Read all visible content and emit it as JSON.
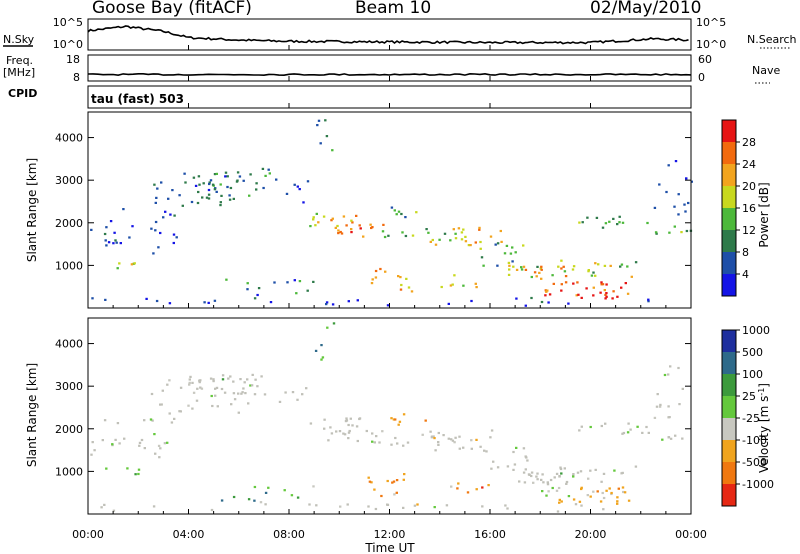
{
  "header": {
    "station": "Goose Bay (fitACF)",
    "beam": "Beam 10",
    "date": "02/May/2010"
  },
  "side_labels": {
    "nsky": "N.Sky",
    "freq": "Freq.",
    "freq_unit": "[MHz]",
    "cpid": "CPID",
    "nsearch": "N.Search",
    "nave": "Nave",
    "cpid_text": "tau (fast) 503"
  },
  "colors": {
    "power_scale": [
      "#1414e6",
      "#1e4fa8",
      "#2e7a4a",
      "#4cb83a",
      "#c8d81e",
      "#f2a41e",
      "#f26a0e",
      "#e61414"
    ],
    "velocity_scale": [
      "#1e2f9e",
      "#2e6a8a",
      "#3c9a3c",
      "#64c83c",
      "#c8c8c0",
      "#f0a41e",
      "#f07810",
      "#e62814"
    ],
    "ground_scatter": "#c0c0b8"
  },
  "chart_data": [
    {
      "type": "line",
      "title": "N.Sky / N.Search",
      "left_ticks": [
        "10^5",
        "10^0"
      ],
      "right_ticks": [
        "10^5",
        "10^0"
      ],
      "x": [
        "00:00",
        "01:30",
        "03:00",
        "04:00",
        "06:00",
        "08:00",
        "12:00",
        "16:00",
        "20:00",
        "22:30",
        "24:00"
      ],
      "series": [
        {
          "values": [
            3.1,
            3.8,
            3.0,
            2.0,
            1.6,
            1.4,
            1.3,
            1.2,
            1.2,
            1.8,
            1.6
          ]
        }
      ]
    },
    {
      "type": "line",
      "title": "Freq. / Nave",
      "left_ticks": [
        "18",
        "8"
      ],
      "right_ticks": [
        "60",
        "0"
      ],
      "x": [
        "00:00",
        "24:00"
      ],
      "series": [
        {
          "values": [
            10.5,
            10.5
          ]
        }
      ]
    },
    {
      "type": "heatmap",
      "ylabel": "Slant Range [km]",
      "yticks": [
        "1000",
        "2000",
        "3000",
        "4000"
      ],
      "xticks": [
        "00:00",
        "04:00",
        "08:00",
        "12:00",
        "16:00",
        "20:00",
        "00:00"
      ],
      "colorbar": {
        "label": "Power [dB]",
        "ticks": [
          "4",
          "8",
          "12",
          "16",
          "20",
          "24",
          "28"
        ]
      }
    },
    {
      "type": "heatmap",
      "ylabel": "Slant Range [km]",
      "xlabel": "Time UT",
      "yticks": [
        "1000",
        "2000",
        "3000",
        "4000"
      ],
      "xticks": [
        "00:00",
        "04:00",
        "08:00",
        "12:00",
        "16:00",
        "20:00",
        "00:00"
      ],
      "colorbar": {
        "label": "Velocity [m s",
        "label_sup": "-1",
        "label_end": "]",
        "ticks": [
          "1000",
          "500",
          "100",
          "25",
          "-25",
          "-100",
          "-500",
          "-1000"
        ]
      }
    }
  ]
}
